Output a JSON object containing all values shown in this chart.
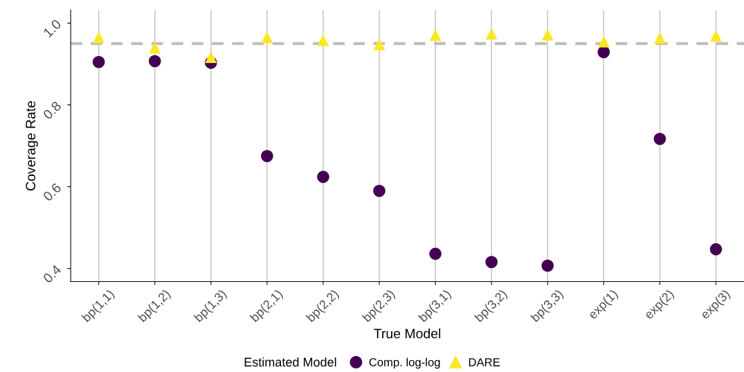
{
  "chart_data": {
    "type": "scatter",
    "xlabel": "True Model",
    "ylabel": "Coverage Rate",
    "legend_title": "Estimated Model",
    "categories": [
      "bp(1,1)",
      "bp(1,2)",
      "bp(1,3)",
      "bp(2,1)",
      "bp(2,2)",
      "bp(2,3)",
      "bp(3,1)",
      "bp(3,2)",
      "bp(3,3)",
      "exp(1)",
      "exp(2)",
      "exp(3)"
    ],
    "series": [
      {
        "name": "Comp. log-log",
        "color": "#440154",
        "marker": "circle",
        "values": [
          0.905,
          0.907,
          0.903,
          0.675,
          0.624,
          0.59,
          0.436,
          0.416,
          0.407,
          0.929,
          0.717,
          0.447
        ]
      },
      {
        "name": "DARE",
        "color": "#fde725",
        "marker": "triangle",
        "values": [
          0.965,
          0.94,
          0.917,
          0.965,
          0.958,
          0.948,
          0.971,
          0.974,
          0.972,
          0.955,
          0.964,
          0.969
        ]
      }
    ],
    "ylim": [
      0.368,
      1.032
    ],
    "yticks": [
      {
        "value": 0.4,
        "label": "0.4"
      },
      {
        "value": 0.6,
        "label": "0.6"
      },
      {
        "value": 0.8,
        "label": "0.8"
      },
      {
        "value": 1.0,
        "label": "1.0"
      }
    ],
    "ref_lines": [
      {
        "axis": "y",
        "value": 0.95,
        "label": null,
        "color": "#bebebe",
        "line_style": "dashed"
      }
    ],
    "grid": "x",
    "legend": "bottom"
  }
}
